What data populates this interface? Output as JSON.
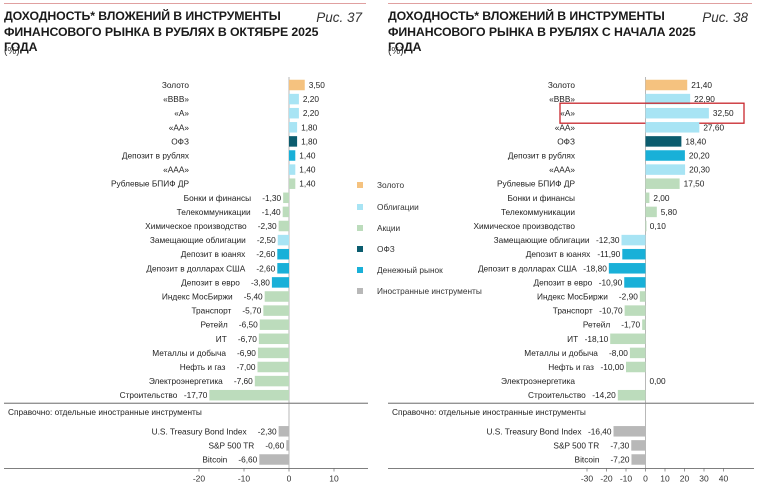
{
  "colors": {
    "gold": "#f5c27f",
    "bonds": "#a8e4f4",
    "equities": "#bcdcbc",
    "ofz": "#0b5c6e",
    "money_market": "#19b0d8",
    "foreign": "#b8b8b8",
    "highlight_box": "#c8262c"
  },
  "legend": [
    {
      "key": "gold",
      "label": "Золото"
    },
    {
      "key": "bonds",
      "label": "Облигации"
    },
    {
      "key": "equities",
      "label": "Акции"
    },
    {
      "key": "ofz",
      "label": "ОФЗ"
    },
    {
      "key": "money_market",
      "label": "Денежный рынок"
    },
    {
      "key": "foreign",
      "label": "Иностранные инструменты"
    }
  ],
  "chart_data": [
    {
      "type": "bar",
      "orientation": "horizontal",
      "title": "ДОХОДНОСТЬ* ВЛОЖЕНИЙ В ИНСТРУМЕНТЫ\nФИНАНСОВОГО РЫНКА В РУБЛЯХ В ОКТЯБРЕ 2025 ГОДА",
      "figure_label": "Рис. 37",
      "unit": "(%)",
      "xlim": [
        -20,
        10
      ],
      "ticks": [
        -20,
        -10,
        0,
        10
      ],
      "reference_label": "Справочно: отдельные иностранные инструменты",
      "categories": [
        "Золото",
        "«BBB»",
        "«A»",
        "«AA»",
        "ОФЗ",
        "Депозит в рублях",
        "«AAA»",
        "Рублевые БПИФ ДР",
        "Бонки и финансы",
        "Телекоммуникации",
        "Химическое производство",
        "Замещающие облигации",
        "Депозит в юанях",
        "Депозит в долларах США",
        "Депозит в евро",
        "Индекс МосБиржи",
        "Транспорт",
        "Ретейл",
        "ИТ",
        "Металлы и добыча",
        "Нефть и газ",
        "Электроэнергетика",
        "Строительство",
        "U.S. Treasury Bond Index",
        "S&P 500 TR",
        "Bitcoin"
      ],
      "values": [
        3.5,
        2.2,
        2.2,
        1.8,
        1.8,
        1.4,
        1.4,
        1.4,
        -1.3,
        -1.4,
        -2.3,
        -2.5,
        -2.6,
        -2.6,
        -3.8,
        -5.4,
        -5.7,
        -6.5,
        -6.7,
        -6.9,
        -7.0,
        -7.6,
        -17.7,
        -2.3,
        -0.6,
        -6.6
      ],
      "labels": [
        "3,50",
        "2,20",
        "2,20",
        "1,80",
        "1,80",
        "1,40",
        "1,40",
        "1,40",
        "-1,30",
        "-1,40",
        "-2,30",
        "-2,50",
        "-2,60",
        "-2,60",
        "-3,80",
        "-5,40",
        "-5,70",
        "-6,50",
        "-6,70",
        "-6,90",
        "-7,00",
        "-7,60",
        "-17,70",
        "-2,30",
        "-0,60",
        "-6,60"
      ],
      "groups": [
        "gold",
        "bonds",
        "bonds",
        "bonds",
        "ofz",
        "money_market",
        "bonds",
        "equities",
        "equities",
        "equities",
        "equities",
        "bonds",
        "money_market",
        "money_market",
        "money_market",
        "equities",
        "equities",
        "equities",
        "equities",
        "equities",
        "equities",
        "equities",
        "equities",
        "foreign",
        "foreign",
        "foreign"
      ]
    },
    {
      "type": "bar",
      "orientation": "horizontal",
      "title": "ДОХОДНОСТЬ* ВЛОЖЕНИЙ В ИНСТРУМЕНТЫ\nФИНАНСОВОГО РЫНКА В РУБЛЯХ С НАЧАЛА 2025 ГОДА",
      "figure_label": "Рис. 38",
      "unit": "(%)",
      "xlim": [
        -30,
        40
      ],
      "ticks": [
        -30,
        -20,
        -10,
        0,
        10,
        20,
        30,
        40
      ],
      "reference_label": "Справочно: отдельные иностранные инструменты",
      "highlight_category": "«A»",
      "categories": [
        "Золото",
        "«BBB»",
        "«A»",
        "«AA»",
        "ОФЗ",
        "Депозит в рублях",
        "«AAA»",
        "Рублевые БПИФ ДР",
        "Бонки и финансы",
        "Телекоммуникации",
        "Химическое производство",
        "Замещающие облигации",
        "Депозит в юанях",
        "Депозит в долларах США",
        "Депозит в евро",
        "Индекс МосБиржи",
        "Транспорт",
        "Ретейл",
        "ИТ",
        "Металлы и добыча",
        "Нефть и газ",
        "Электроэнергетика",
        "Строительство",
        "U.S. Treasury Bond Index",
        "S&P 500 TR",
        "Bitcoin"
      ],
      "values": [
        21.4,
        22.9,
        32.5,
        27.6,
        18.4,
        20.2,
        20.3,
        17.5,
        2.0,
        5.8,
        0.1,
        -12.3,
        -11.9,
        -18.8,
        -10.9,
        -2.9,
        -10.7,
        -1.7,
        -18.1,
        -8.0,
        -10.0,
        0.0,
        -14.2,
        -16.4,
        -7.3,
        -7.2
      ],
      "labels": [
        "21,40",
        "22,90",
        "32,50",
        "27,60",
        "18,40",
        "20,20",
        "20,30",
        "17,50",
        "2,00",
        "5,80",
        "0,10",
        "-12,30",
        "-11,90",
        "-18,80",
        "-10,90",
        "-2,90",
        "-10,70",
        "-1,70",
        "-18,10",
        "-8,00",
        "-10,00",
        "0,00",
        "-14,20",
        "-16,40",
        "-7,30",
        "-7,20"
      ],
      "groups": [
        "gold",
        "bonds",
        "bonds",
        "bonds",
        "ofz",
        "money_market",
        "bonds",
        "equities",
        "equities",
        "equities",
        "equities",
        "bonds",
        "money_market",
        "money_market",
        "money_market",
        "equities",
        "equities",
        "equities",
        "equities",
        "equities",
        "equities",
        "equities",
        "equities",
        "foreign",
        "foreign",
        "foreign"
      ]
    }
  ]
}
